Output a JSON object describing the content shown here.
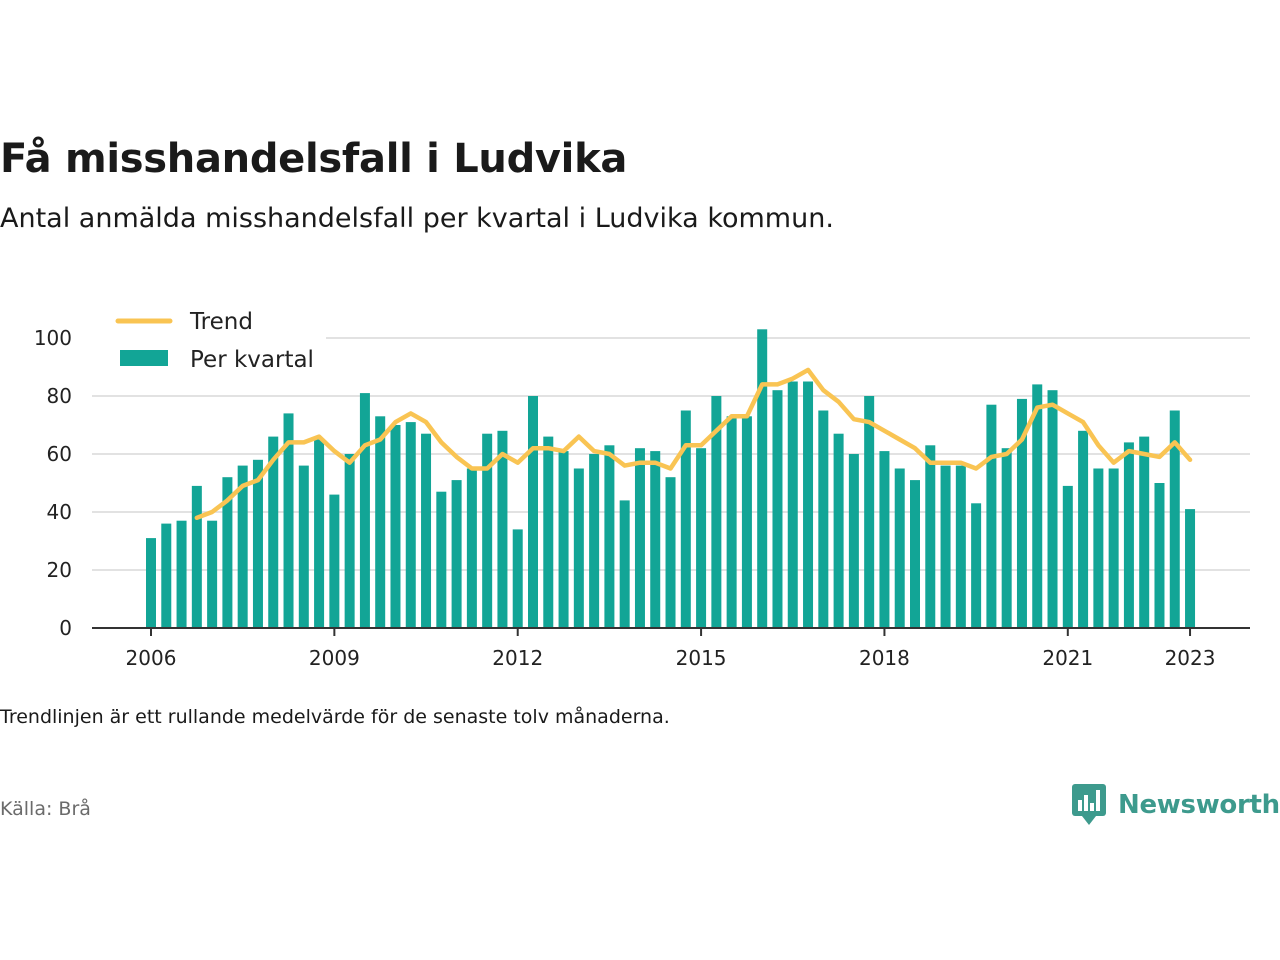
{
  "header": {
    "title": "Få misshandelsfall i Ludvika",
    "subtitle": "Antal anmälda misshandelsfall per kvartal i Ludvika kommun."
  },
  "footer": {
    "note": "Trendlinjen är ett rullande medelvärde för de senaste tolv månaderna.",
    "source": "Källa: Brå",
    "brand": "Newsworthy"
  },
  "colors": {
    "bar": "#12a596",
    "trend": "#f9c453",
    "grid": "#d9d9d9",
    "axis": "#333333",
    "brand": "#3d9a8d"
  },
  "icons": {
    "brand_logo": "bar-chart-speech-bubble-icon"
  },
  "chart_data": {
    "type": "bar",
    "x_axis": {
      "ticks": [
        "2006",
        "2009",
        "2012",
        "2015",
        "2018",
        "2021",
        "2023"
      ]
    },
    "y_axis": {
      "min": 0,
      "max": 100,
      "ticks": [
        0,
        20,
        40,
        60,
        80,
        100
      ]
    },
    "grid": true,
    "legend_position": "top-left",
    "categories": [
      "2006 Q1",
      "2006 Q2",
      "2006 Q3",
      "2006 Q4",
      "2007 Q1",
      "2007 Q2",
      "2007 Q3",
      "2007 Q4",
      "2008 Q1",
      "2008 Q2",
      "2008 Q3",
      "2008 Q4",
      "2009 Q1",
      "2009 Q2",
      "2009 Q3",
      "2009 Q4",
      "2010 Q1",
      "2010 Q2",
      "2010 Q3",
      "2010 Q4",
      "2011 Q1",
      "2011 Q2",
      "2011 Q3",
      "2011 Q4",
      "2012 Q1",
      "2012 Q2",
      "2012 Q3",
      "2012 Q4",
      "2013 Q1",
      "2013 Q2",
      "2013 Q3",
      "2013 Q4",
      "2014 Q1",
      "2014 Q2",
      "2014 Q3",
      "2014 Q4",
      "2015 Q1",
      "2015 Q2",
      "2015 Q3",
      "2015 Q4",
      "2016 Q1",
      "2016 Q2",
      "2016 Q3",
      "2016 Q4",
      "2017 Q1",
      "2017 Q2",
      "2017 Q3",
      "2017 Q4",
      "2018 Q1",
      "2018 Q2",
      "2018 Q3",
      "2018 Q4",
      "2019 Q1",
      "2019 Q2",
      "2019 Q3",
      "2019 Q4",
      "2020 Q1",
      "2020 Q2",
      "2020 Q3",
      "2020 Q4",
      "2021 Q1",
      "2021 Q2",
      "2021 Q3",
      "2021 Q4",
      "2022 Q1",
      "2022 Q2",
      "2022 Q3",
      "2022 Q4",
      "2023 Q1"
    ],
    "series": [
      {
        "name": "Per kvartal",
        "type": "bar",
        "values": [
          31,
          36,
          37,
          49,
          37,
          52,
          56,
          58,
          66,
          74,
          56,
          65,
          46,
          60,
          81,
          73,
          70,
          71,
          67,
          47,
          51,
          55,
          67,
          68,
          34,
          80,
          66,
          61,
          55,
          60,
          63,
          44,
          62,
          61,
          52,
          75,
          62,
          80,
          73,
          73,
          103,
          82,
          85,
          85,
          75,
          67,
          60,
          80,
          61,
          55,
          51,
          63,
          56,
          56,
          43,
          77,
          62,
          79,
          84,
          82,
          49,
          68,
          55,
          55,
          64,
          66,
          50,
          75,
          41
        ]
      },
      {
        "name": "Trend",
        "type": "line",
        "values": [
          null,
          null,
          null,
          38,
          40,
          44,
          49,
          51,
          58,
          64,
          64,
          66,
          61,
          57,
          63,
          65,
          71,
          74,
          71,
          64,
          59,
          55,
          55,
          60,
          57,
          62,
          62,
          61,
          66,
          61,
          60,
          56,
          57,
          57,
          55,
          63,
          63,
          68,
          73,
          73,
          84,
          84,
          86,
          89,
          82,
          78,
          72,
          71,
          68,
          65,
          62,
          57,
          57,
          57,
          55,
          59,
          60,
          65,
          76,
          77,
          74,
          71,
          63,
          57,
          61,
          60,
          59,
          64,
          58
        ]
      }
    ]
  }
}
